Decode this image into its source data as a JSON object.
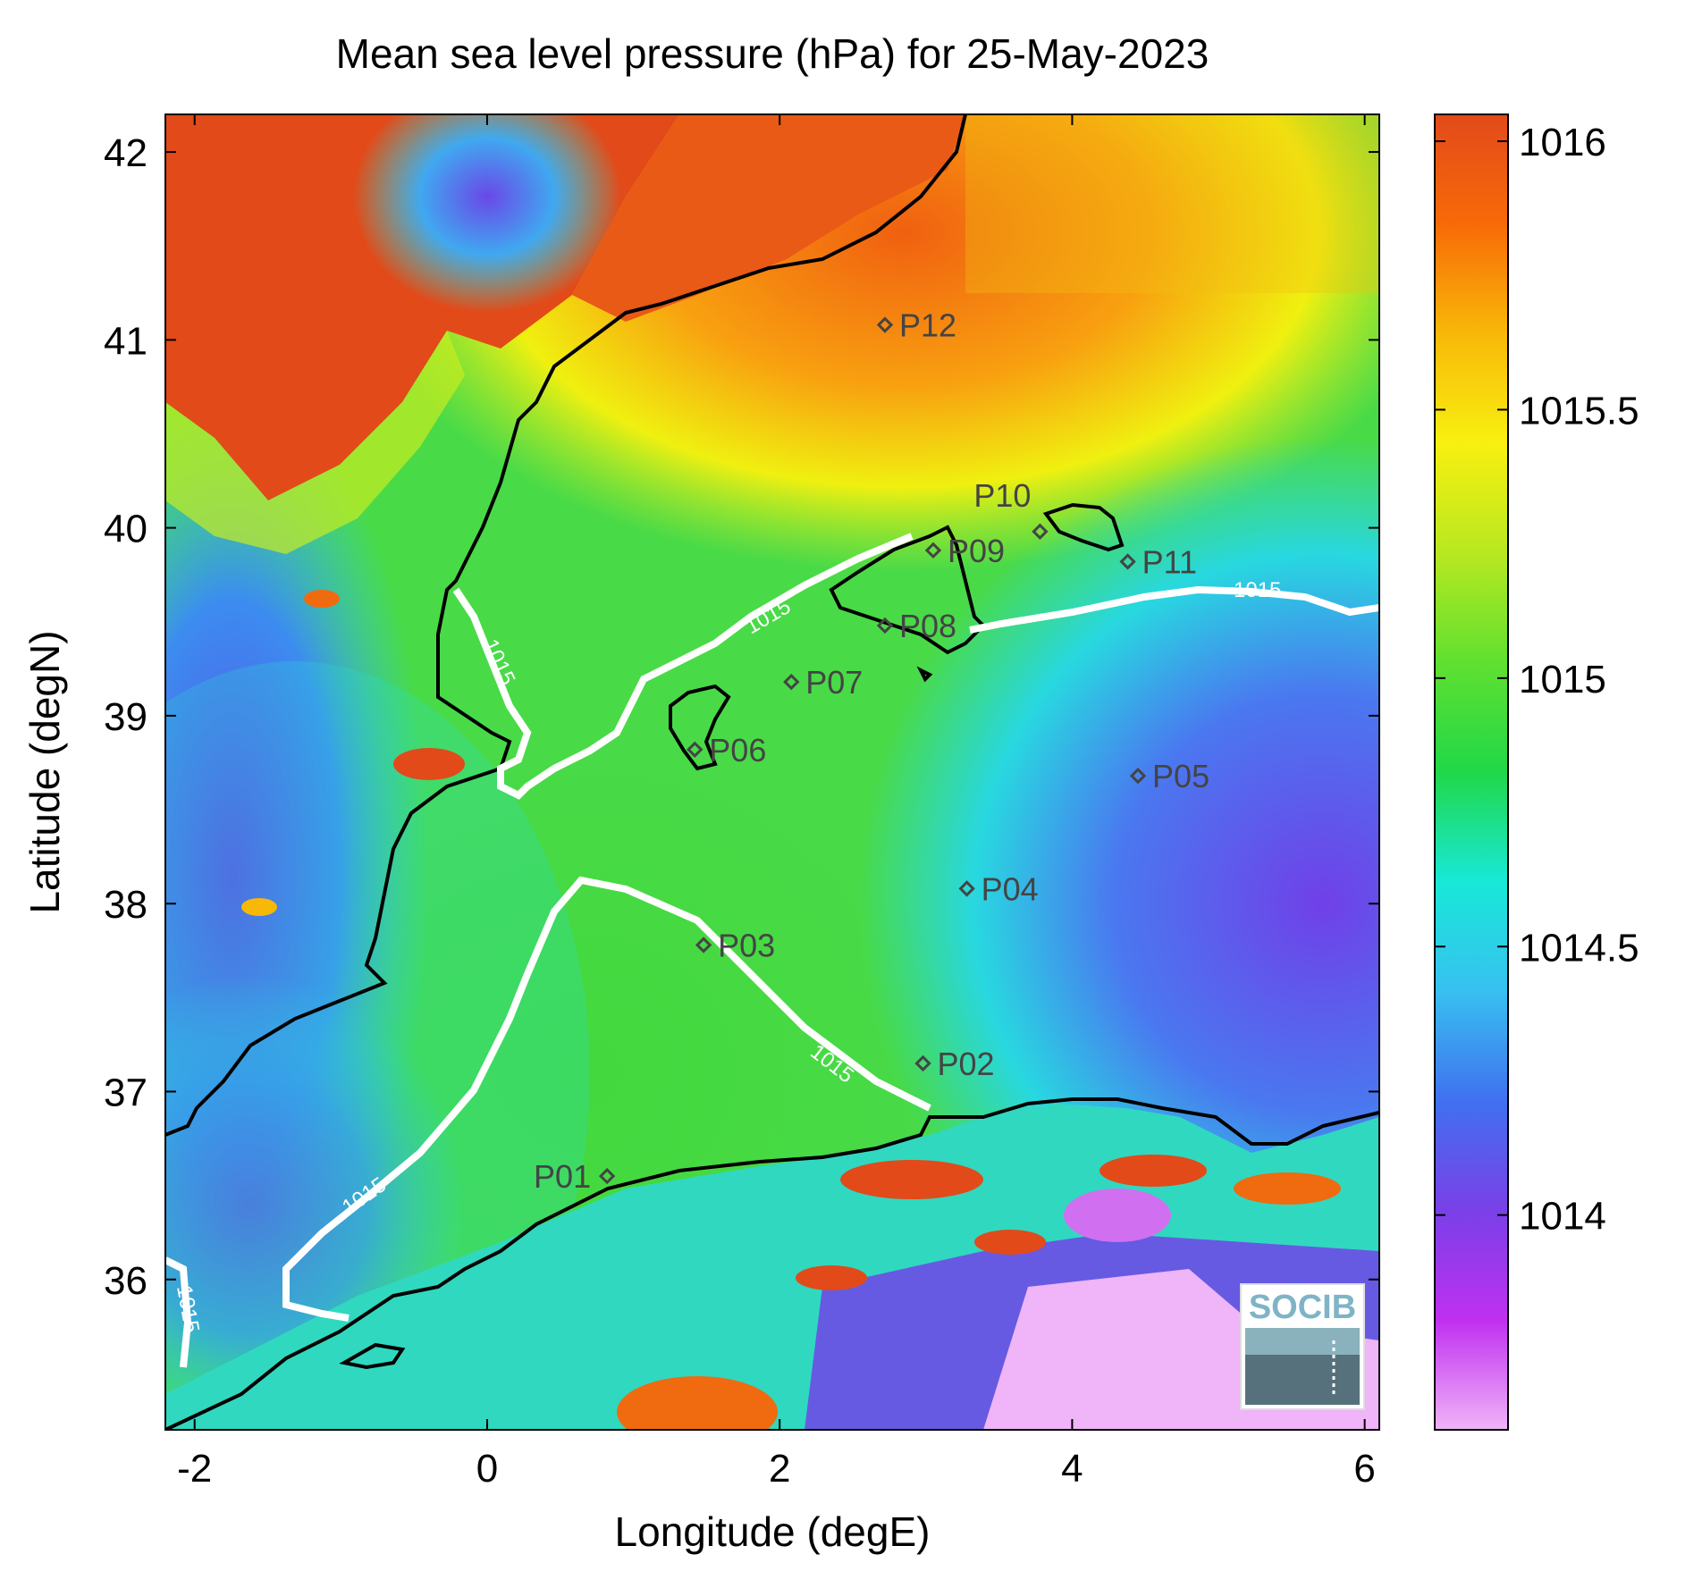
{
  "title": "Mean sea level pressure (hPa) for 25-May-2023",
  "x_axis": {
    "label": "Longitude (degE)",
    "ticks": [
      "-2",
      "0",
      "2",
      "4",
      "6"
    ],
    "range": [
      -2.2,
      6.1
    ]
  },
  "y_axis": {
    "label": "Latitude (degN)",
    "ticks": [
      "36",
      "37",
      "38",
      "39",
      "40",
      "41",
      "42"
    ],
    "range": [
      35.2,
      42.2
    ]
  },
  "colorbar": {
    "ticks": [
      "1014",
      "1014.5",
      "1015",
      "1015.5",
      "1016"
    ],
    "range": [
      1013.6,
      1016.05
    ],
    "stops": [
      "#f0b4f8",
      "#c030f0",
      "#7a40e8",
      "#4070f0",
      "#38c0f0",
      "#18e8d8",
      "#20d848",
      "#60e030",
      "#b8e820",
      "#f8f010",
      "#f8b808",
      "#f86a08",
      "#e24a1a"
    ]
  },
  "contour": {
    "level_label": "1015",
    "color": "#ffffff"
  },
  "stations": [
    {
      "name": "P01",
      "lon": 0.82,
      "lat": 36.55
    },
    {
      "name": "P02",
      "lon": 2.98,
      "lat": 37.15
    },
    {
      "name": "P03",
      "lon": 1.48,
      "lat": 37.78
    },
    {
      "name": "P04",
      "lon": 3.28,
      "lat": 38.08
    },
    {
      "name": "P05",
      "lon": 4.45,
      "lat": 38.68
    },
    {
      "name": "P06",
      "lon": 1.42,
      "lat": 38.82
    },
    {
      "name": "P07",
      "lon": 2.08,
      "lat": 39.18
    },
    {
      "name": "P08",
      "lon": 2.72,
      "lat": 39.48
    },
    {
      "name": "P09",
      "lon": 3.05,
      "lat": 39.88
    },
    {
      "name": "P10",
      "lon": 3.78,
      "lat": 39.98
    },
    {
      "name": "P11",
      "lon": 4.38,
      "lat": 39.82
    },
    {
      "name": "P12",
      "lon": 2.72,
      "lat": 41.08
    }
  ],
  "logo": {
    "text": "SOCIB",
    "icon": "socib-logo"
  }
}
